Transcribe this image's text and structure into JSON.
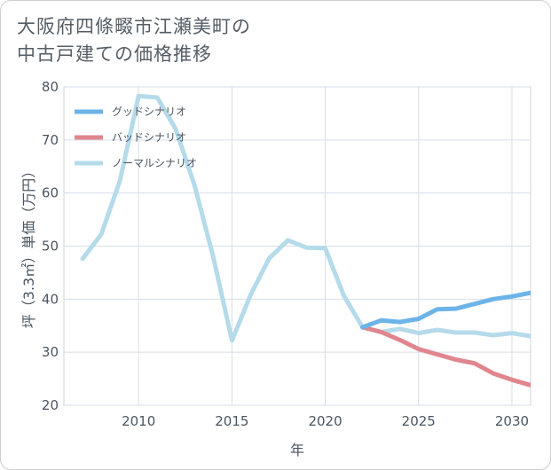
{
  "title_lines": [
    "大阪府四條畷市江瀬美町の",
    "中古戸建ての価格推移"
  ],
  "chart_data": {
    "type": "line",
    "title": "大阪府四條畷市江瀬美町の中古戸建ての価格推移",
    "xlabel": "年",
    "ylabel": "坪（3.3㎡）単価（万円）",
    "xlim": [
      2006,
      2031
    ],
    "ylim": [
      20,
      80
    ],
    "xticks": [
      2010,
      2015,
      2020,
      2025,
      2030
    ],
    "yticks": [
      20,
      30,
      40,
      50,
      60,
      70,
      80
    ],
    "grid": true,
    "legend_position": "top-left",
    "series": [
      {
        "name": "グッドシナリオ",
        "color": "#6cb4e8",
        "x": [
          2022,
          2023,
          2024,
          2025,
          2026,
          2027,
          2028,
          2029,
          2030,
          2031
        ],
        "y": [
          34.7,
          36.0,
          35.7,
          36.3,
          38.1,
          38.2,
          39.1,
          40.0,
          40.5,
          41.2
        ]
      },
      {
        "name": "バッドシナリオ",
        "color": "#e0868e",
        "x": [
          2022,
          2023,
          2024,
          2025,
          2026,
          2027,
          2028,
          2029,
          2030,
          2031
        ],
        "y": [
          34.7,
          33.8,
          32.3,
          30.6,
          29.6,
          28.6,
          27.9,
          26.0,
          24.8,
          23.8
        ]
      },
      {
        "name": "ノーマルシナリオ",
        "color": "#b5dbea",
        "x": [
          2007,
          2008,
          2009,
          2010,
          2011,
          2012,
          2013,
          2014,
          2015,
          2016,
          2017,
          2018,
          2019,
          2020,
          2021,
          2022,
          2023,
          2024,
          2025,
          2026,
          2027,
          2028,
          2029,
          2030,
          2031
        ],
        "y": [
          47.6,
          52.2,
          62.3,
          78.3,
          78.0,
          72.0,
          61.4,
          48.0,
          32.2,
          40.8,
          47.7,
          51.1,
          49.7,
          49.6,
          40.6,
          34.7,
          33.8,
          34.4,
          33.6,
          34.2,
          33.7,
          33.7,
          33.2,
          33.6,
          33.0
        ]
      }
    ]
  }
}
